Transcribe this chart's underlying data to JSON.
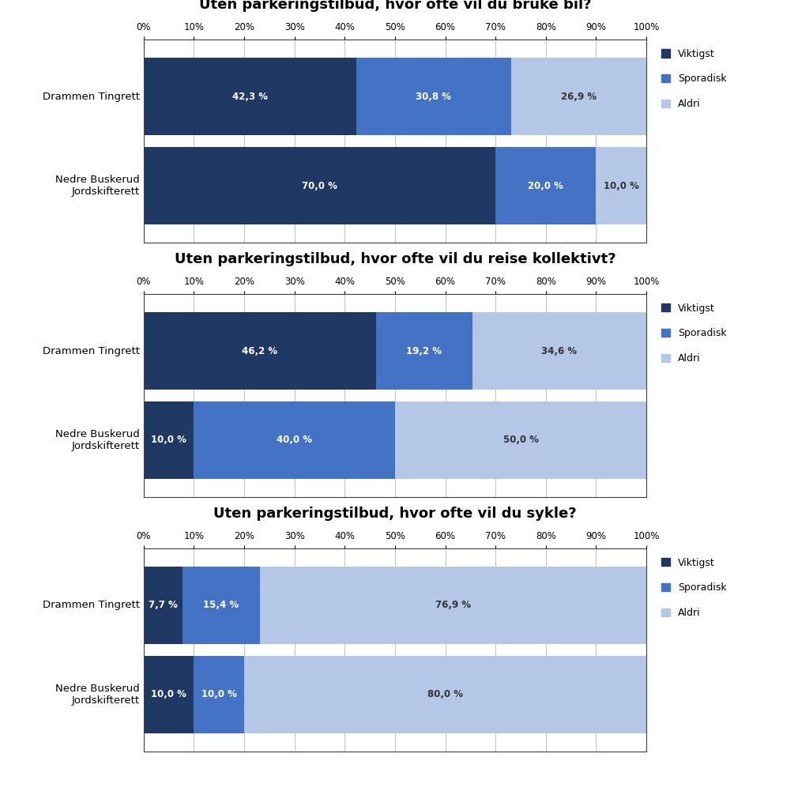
{
  "charts": [
    {
      "title": "Uten parkeringstilbud, hvor ofte vil du bruke bil?",
      "categories": [
        "Drammen Tingrett",
        "Nedre Buskerud\nJordskifterett"
      ],
      "viktigst": [
        42.3,
        70.0
      ],
      "sporadisk": [
        30.8,
        20.0
      ],
      "aldri": [
        26.9,
        10.0
      ],
      "labels_viktigst": [
        "42,3 %",
        "70,0 %"
      ],
      "labels_sporadisk": [
        "30,8 %",
        "20,0 %"
      ],
      "labels_aldri": [
        "26,9 %",
        "10,0 %"
      ]
    },
    {
      "title": "Uten parkeringstilbud, hvor ofte vil du reise kollektivt?",
      "categories": [
        "Drammen Tingrett",
        "Nedre Buskerud\nJordskifterett"
      ],
      "viktigst": [
        46.2,
        10.0
      ],
      "sporadisk": [
        19.2,
        40.0
      ],
      "aldri": [
        34.6,
        50.0
      ],
      "labels_viktigst": [
        "46,2 %",
        "10,0 %"
      ],
      "labels_sporadisk": [
        "19,2 %",
        "40,0 %"
      ],
      "labels_aldri": [
        "34,6 %",
        "50,0 %"
      ]
    },
    {
      "title": "Uten parkeringstilbud, hvor ofte vil du sykle?",
      "categories": [
        "Drammen Tingrett",
        "Nedre Buskerud\nJordskifterett"
      ],
      "viktigst": [
        7.7,
        10.0
      ],
      "sporadisk": [
        15.4,
        10.0
      ],
      "aldri": [
        76.9,
        80.0
      ],
      "labels_viktigst": [
        "7,7 %",
        "10,0 %"
      ],
      "labels_sporadisk": [
        "15,4 %",
        "10,0 %"
      ],
      "labels_aldri": [
        "76,9 %",
        "80,0 %"
      ]
    }
  ],
  "color_viktigst": "#1F3864",
  "color_sporadisk": "#4472C4",
  "color_aldri": "#B4C7E7",
  "legend_labels": [
    "Viktigst",
    "Sporadisk",
    "Aldri"
  ],
  "background_color": "#FFFFFF",
  "bar_height": 0.38,
  "title_fontsize": 13,
  "label_fontsize": 8.5,
  "tick_fontsize": 8.5,
  "legend_fontsize": 9,
  "ytick_fontsize": 9.5,
  "border_color": "#404040"
}
